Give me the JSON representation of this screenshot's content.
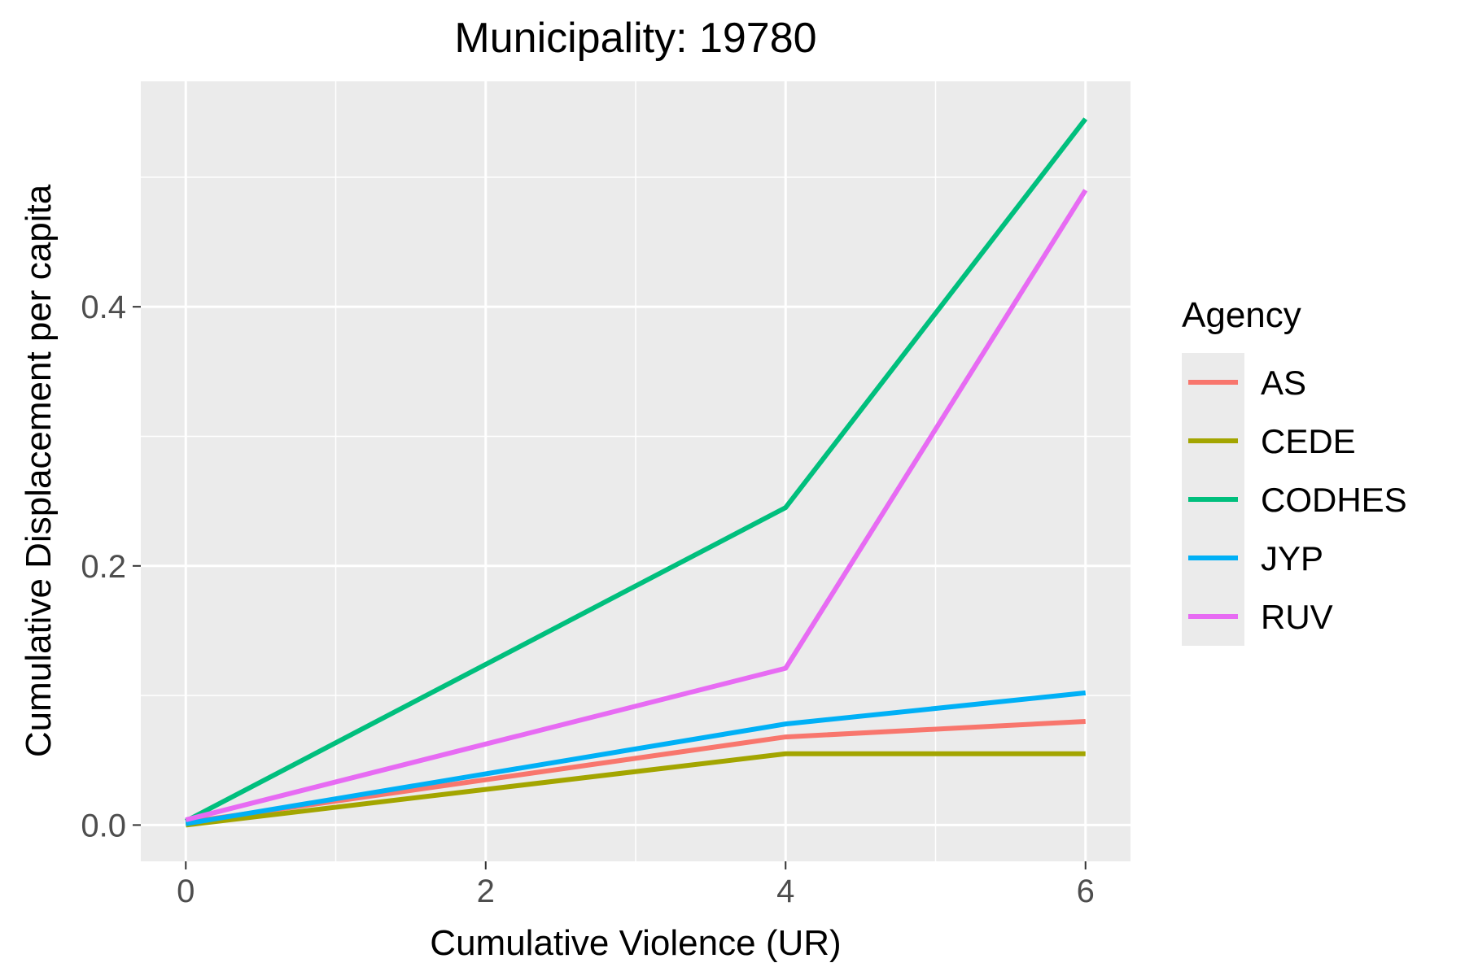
{
  "chart_data": {
    "type": "line",
    "title": "Municipality: 19780",
    "xlabel": "Cumulative Violence (UR)",
    "ylabel": "Cumulative Displacement per capita",
    "xlim": [
      -0.3,
      6.3
    ],
    "ylim": [
      -0.028,
      0.574
    ],
    "x_ticks": [
      0,
      2,
      4,
      6
    ],
    "x_tick_labels": [
      "0",
      "2",
      "4",
      "6"
    ],
    "x_minor_ticks": [
      1,
      3,
      5
    ],
    "y_ticks": [
      0,
      0.2,
      0.4
    ],
    "y_tick_labels": [
      "0.0",
      "0.2",
      "0.4"
    ],
    "y_minor_ticks": [
      0.1,
      0.3,
      0.5
    ],
    "grid": true,
    "panel_background": "#ebebeb",
    "grid_color": "#ffffff",
    "legend": {
      "title": "Agency",
      "position": "right"
    },
    "series": [
      {
        "name": "AS",
        "color": "#F8766D",
        "x": [
          0,
          4,
          6
        ],
        "y": [
          0.002,
          0.068,
          0.08
        ]
      },
      {
        "name": "CEDE",
        "color": "#A3A500",
        "x": [
          0,
          4,
          6
        ],
        "y": [
          0.0,
          0.055,
          0.055
        ]
      },
      {
        "name": "CODHES",
        "color": "#00BF7D",
        "x": [
          0,
          4,
          6
        ],
        "y": [
          0.003,
          0.245,
          0.545
        ]
      },
      {
        "name": "JYP",
        "color": "#00B0F6",
        "x": [
          0,
          4,
          6
        ],
        "y": [
          0.001,
          0.078,
          0.102
        ]
      },
      {
        "name": "RUV",
        "color": "#E76BF3",
        "x": [
          0,
          4,
          6
        ],
        "y": [
          0.004,
          0.121,
          0.49
        ]
      }
    ]
  }
}
